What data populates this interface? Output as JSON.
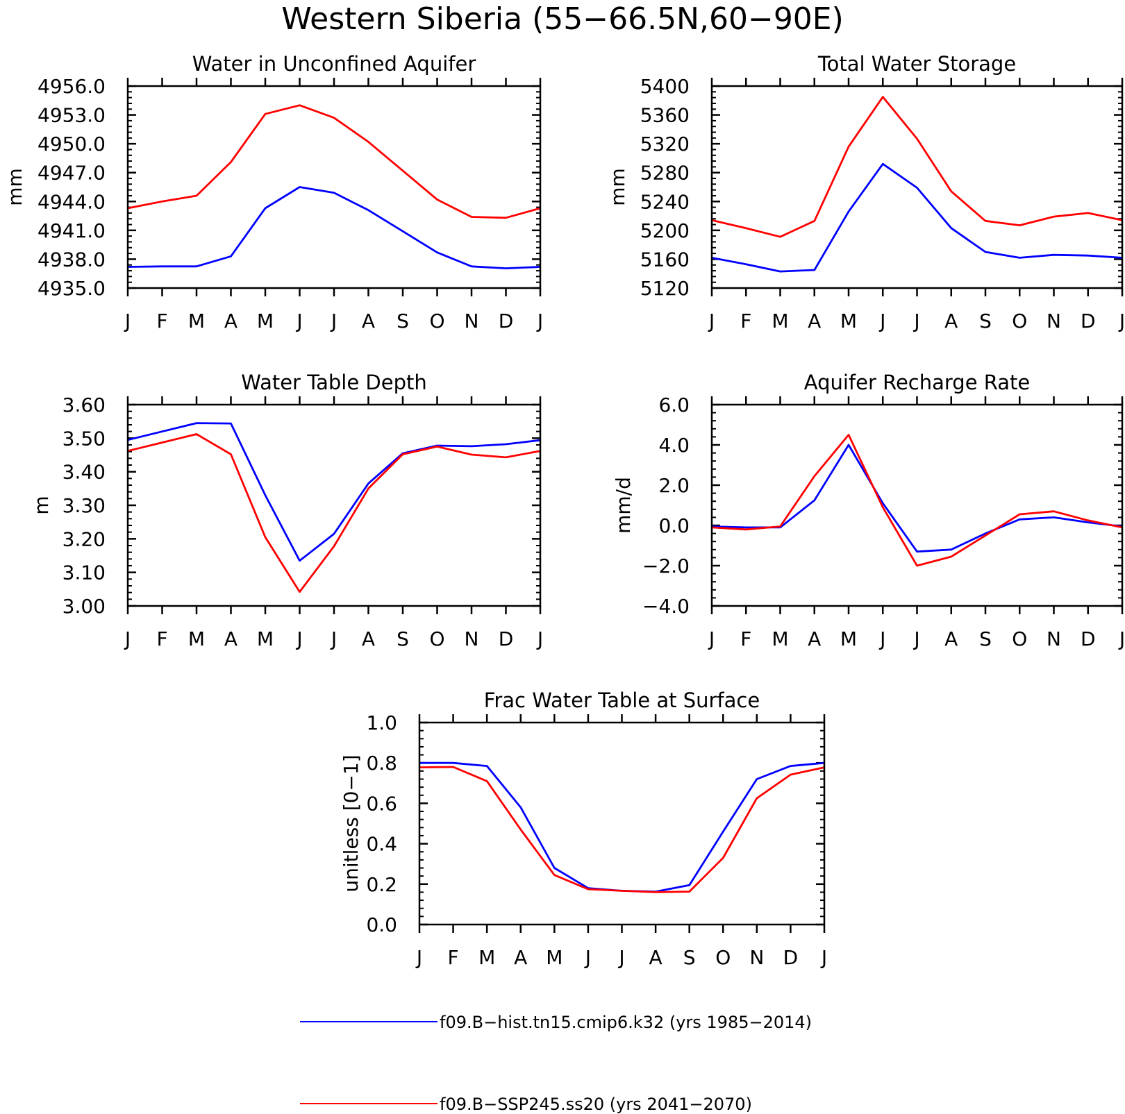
{
  "figure": {
    "title": "Western Siberia (55−66.5N,60−90E)"
  },
  "legend": {
    "entries": [
      {
        "label": "f09.B−hist.tn15.cmip6.k32 (yrs 1985−2014)",
        "color": "#0000ff"
      },
      {
        "label": "f09.B−SSP245.ss20 (yrs 2041−2070)",
        "color": "#ff0000"
      }
    ]
  },
  "chart_data": [
    {
      "type": "line",
      "title": "Water in Unconfined Aquifer",
      "ylabel": "mm",
      "categories": [
        "J",
        "F",
        "M",
        "A",
        "M",
        "J",
        "J",
        "A",
        "S",
        "O",
        "N",
        "D",
        "J"
      ],
      "ylim": [
        4935.0,
        4956.0
      ],
      "yticks": [
        "4935.0",
        "4938.0",
        "4941.0",
        "4944.0",
        "4947.0",
        "4950.0",
        "4953.0",
        "4956.0"
      ],
      "series": [
        {
          "name": "f09.B−hist.tn15.cmip6.k32 (yrs 1985−2014)",
          "color": "#0000ff",
          "values": [
            4937.2,
            4937.25,
            4937.25,
            4938.3,
            4943.3,
            4945.5,
            4944.9,
            4943.1,
            4940.9,
            4938.7,
            4937.25,
            4937.05,
            4937.2
          ]
        },
        {
          "name": "f09.B−SSP245.ss20 (yrs 2041−2070)",
          "color": "#ff0000",
          "values": [
            4943.3,
            4944.0,
            4944.6,
            4948.1,
            4953.1,
            4954.0,
            4952.7,
            4950.2,
            4947.2,
            4944.2,
            4942.4,
            4942.3,
            4943.3
          ]
        }
      ]
    },
    {
      "type": "line",
      "title": "Total Water Storage",
      "ylabel": "mm",
      "categories": [
        "J",
        "F",
        "M",
        "A",
        "M",
        "J",
        "J",
        "A",
        "S",
        "O",
        "N",
        "D",
        "J"
      ],
      "ylim": [
        5120,
        5400
      ],
      "yticks": [
        "5120",
        "5160",
        "5200",
        "5240",
        "5280",
        "5320",
        "5360",
        "5400"
      ],
      "series": [
        {
          "name": "f09.B−hist.tn15.cmip6.k32 (yrs 1985−2014)",
          "color": "#0000ff",
          "values": [
            5162,
            5153,
            5143,
            5145,
            5226,
            5292,
            5259,
            5203,
            5170,
            5162,
            5166,
            5165,
            5162
          ]
        },
        {
          "name": "f09.B−SSP245.ss20 (yrs 2041−2070)",
          "color": "#ff0000",
          "values": [
            5214,
            5203,
            5191,
            5213,
            5316,
            5385,
            5327,
            5254,
            5213,
            5207,
            5219,
            5224,
            5214
          ]
        }
      ]
    },
    {
      "type": "line",
      "title": "Water Table Depth",
      "ylabel": "m",
      "categories": [
        "J",
        "F",
        "M",
        "A",
        "M",
        "J",
        "J",
        "A",
        "S",
        "O",
        "N",
        "D",
        "J"
      ],
      "ylim": [
        3.0,
        3.6
      ],
      "yticks": [
        "3.00",
        "3.10",
        "3.20",
        "3.30",
        "3.40",
        "3.50",
        "3.60"
      ],
      "series": [
        {
          "name": "f09.B−hist.tn15.cmip6.k32 (yrs 1985−2014)",
          "color": "#0000ff",
          "values": [
            3.495,
            3.52,
            3.545,
            3.544,
            3.33,
            3.135,
            3.215,
            3.365,
            3.455,
            3.478,
            3.476,
            3.482,
            3.494
          ]
        },
        {
          "name": "f09.B−SSP245.ss20 (yrs 2041−2070)",
          "color": "#ff0000",
          "values": [
            3.462,
            3.487,
            3.512,
            3.452,
            3.205,
            3.042,
            3.178,
            3.35,
            3.452,
            3.475,
            3.451,
            3.443,
            3.462
          ]
        }
      ]
    },
    {
      "type": "line",
      "title": "Aquifer Recharge Rate",
      "ylabel": "mm/d",
      "categories": [
        "J",
        "F",
        "M",
        "A",
        "M",
        "J",
        "J",
        "A",
        "S",
        "O",
        "N",
        "D",
        "J"
      ],
      "ylim": [
        -4.0,
        6.0
      ],
      "yticks": [
        "−4.0",
        "−2.0",
        "0.0",
        "2.0",
        "4.0",
        "6.0"
      ],
      "series": [
        {
          "name": "f09.B−hist.tn15.cmip6.k32 (yrs 1985−2014)",
          "color": "#0000ff",
          "values": [
            -0.05,
            -0.1,
            -0.1,
            1.25,
            4.0,
            1.1,
            -1.3,
            -1.2,
            -0.4,
            0.3,
            0.4,
            0.15,
            -0.05
          ]
        },
        {
          "name": "f09.B−SSP245.ss20 (yrs 2041−2070)",
          "color": "#ff0000",
          "values": [
            -0.1,
            -0.2,
            -0.05,
            2.45,
            4.5,
            0.9,
            -2.0,
            -1.55,
            -0.5,
            0.55,
            0.7,
            0.25,
            -0.1
          ]
        }
      ]
    },
    {
      "type": "line",
      "title": "Frac Water Table at Surface",
      "ylabel": "unitless [0−1]",
      "categories": [
        "J",
        "F",
        "M",
        "A",
        "M",
        "J",
        "J",
        "A",
        "S",
        "O",
        "N",
        "D",
        "J"
      ],
      "ylim": [
        0.0,
        1.0
      ],
      "yticks": [
        "0.0",
        "0.2",
        "0.4",
        "0.6",
        "0.8",
        "1.0"
      ],
      "series": [
        {
          "name": "f09.B−hist.tn15.cmip6.k32 (yrs 1985−2014)",
          "color": "#0000ff",
          "values": [
            0.8,
            0.8,
            0.785,
            0.58,
            0.28,
            0.18,
            0.167,
            0.163,
            0.195,
            0.46,
            0.72,
            0.785,
            0.8
          ]
        },
        {
          "name": "f09.B−SSP245.ss20 (yrs 2041−2070)",
          "color": "#ff0000",
          "values": [
            0.778,
            0.78,
            0.71,
            0.47,
            0.245,
            0.175,
            0.167,
            0.16,
            0.163,
            0.33,
            0.625,
            0.742,
            0.778
          ]
        }
      ]
    }
  ]
}
